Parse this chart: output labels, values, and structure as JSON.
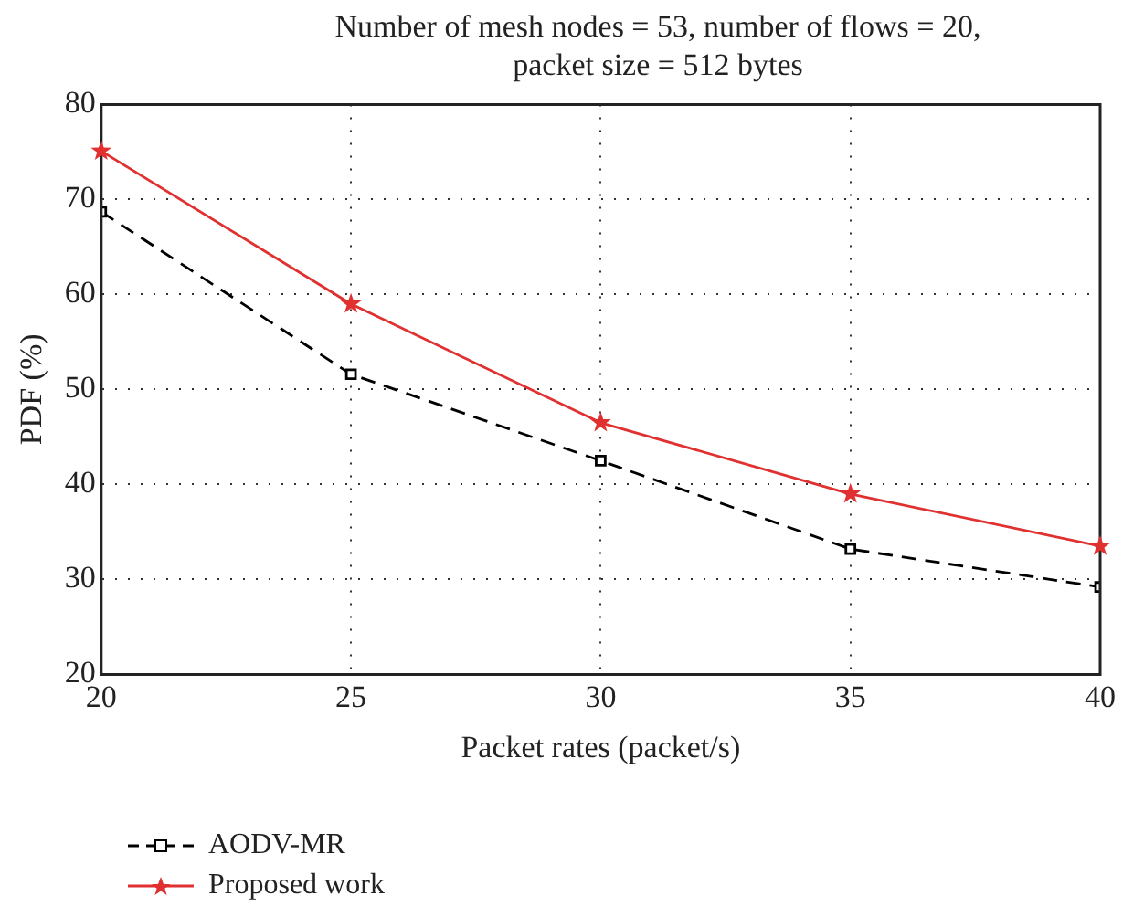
{
  "chart_data": {
    "type": "line",
    "title": "Number of mesh nodes = 53, number of flows = 20, packet size = 512 bytes",
    "xlabel": "Packet rates (packet/s)",
    "ylabel": "PDF (%)",
    "x": [
      20,
      25,
      30,
      35,
      40
    ],
    "series": [
      {
        "name": "AODV-MR",
        "color": "#000000",
        "values": [
          68.7,
          51.6,
          42.5,
          33.2,
          29.2
        ],
        "marker": "square",
        "line_style": "dashed"
      },
      {
        "name": "Proposed work",
        "color": "#e03030",
        "values": [
          75.1,
          59.0,
          46.5,
          39.0,
          33.5
        ],
        "marker": "star",
        "line_style": "solid"
      }
    ],
    "xlim": [
      20,
      40
    ],
    "xticks": [
      20,
      25,
      30,
      35,
      40
    ],
    "ylim": [
      20,
      80
    ],
    "yticks": [
      20,
      30,
      40,
      50,
      60,
      70,
      80
    ],
    "grid": true,
    "legend": "bottom left"
  }
}
